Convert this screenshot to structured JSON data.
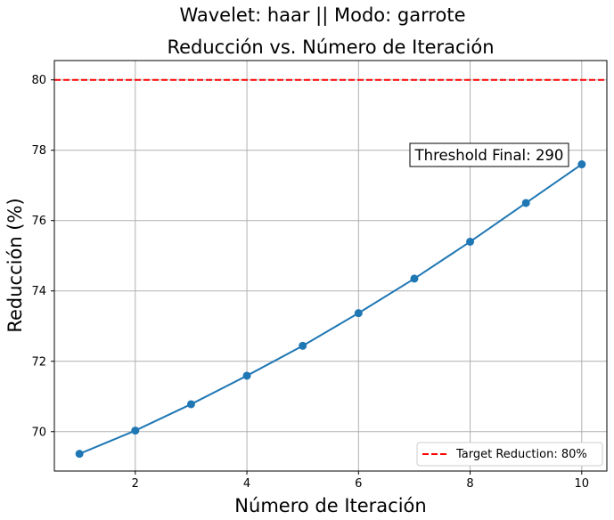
{
  "chart_data": {
    "type": "line",
    "suptitle": "Wavelet: haar || Modo: garrote",
    "title": "Reducción vs. Número de Iteración",
    "xlabel": "Número de Iteración",
    "ylabel": "Reducción (%)",
    "xlim": [
      0.55,
      10.45
    ],
    "ylim": [
      68.88,
      80.55
    ],
    "xticks": [
      2,
      4,
      6,
      8,
      10
    ],
    "yticks": [
      70,
      72,
      74,
      76,
      78,
      80
    ],
    "grid": true,
    "series": [
      {
        "x": [
          1,
          2,
          3,
          4,
          5,
          6,
          7,
          8,
          9,
          10
        ],
        "values": [
          69.37,
          70.03,
          70.78,
          71.59,
          72.44,
          73.37,
          74.35,
          75.4,
          76.5,
          77.6
        ],
        "color": "#1f77b4",
        "marker": "circle"
      }
    ],
    "reference_line": {
      "y": 80,
      "label": "Target Reduction: 80%",
      "color": "#ff0000",
      "style": "dashed"
    },
    "annotation": {
      "text": "Threshold Final: 290",
      "x": 7,
      "y": 77.75
    },
    "legend_position": "lower-right"
  }
}
